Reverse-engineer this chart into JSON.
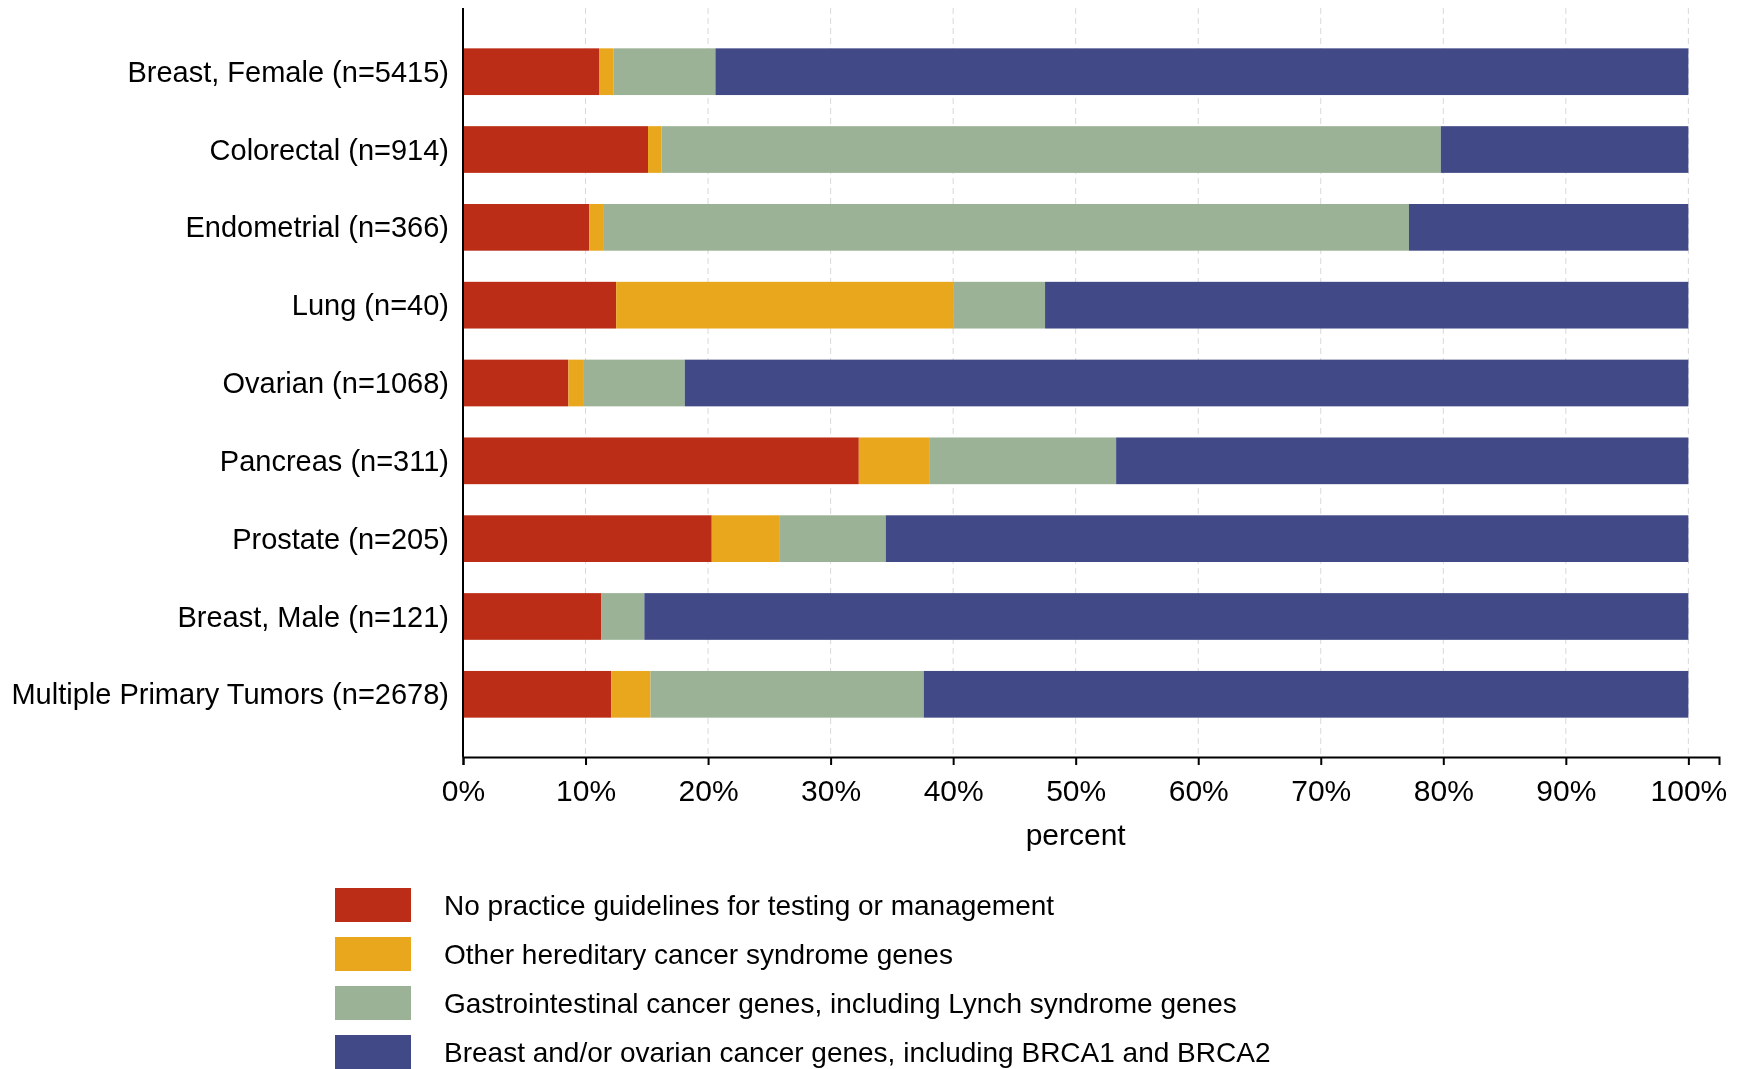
{
  "chart_data": {
    "type": "bar",
    "orientation": "horizontal",
    "stacked": true,
    "xlabel": "percent",
    "grid": "x",
    "legend": "bottom",
    "categories": [
      "Breast, Female (n=5415)",
      "Colorectal (n=914)",
      "Endometrial (n=366)",
      "Lung (n=40)",
      "Ovarian (n=1068)",
      "Pancreas (n=311)",
      "Prostate (n=205)",
      "Breast, Male (n=121)",
      "Multiple Primary Tumors (n=2678)"
    ],
    "xlim": [
      0,
      102.5
    ],
    "xticks": [
      {
        "value": 0,
        "label": "0%"
      },
      {
        "value": 10,
        "label": "10%"
      },
      {
        "value": 20,
        "label": "20%"
      },
      {
        "value": 30,
        "label": "30%"
      },
      {
        "value": 40,
        "label": "40%"
      },
      {
        "value": 50,
        "label": "50%"
      },
      {
        "value": 60,
        "label": "60%"
      },
      {
        "value": 70,
        "label": "70%"
      },
      {
        "value": 80,
        "label": "80%"
      },
      {
        "value": 90,
        "label": "90%"
      },
      {
        "value": 100,
        "label": "100%"
      }
    ],
    "series": [
      {
        "name": "No practice guidelines for testing or management",
        "color": "#bb2d16",
        "values": [
          11.1,
          15.1,
          10.3,
          12.5,
          8.6,
          32.3,
          20.3,
          11.3,
          12.1
        ]
      },
      {
        "name": "Other hereditary cancer syndrome genes",
        "color": "#e8a71c",
        "values": [
          1.2,
          1.1,
          1.2,
          27.5,
          1.2,
          5.8,
          5.5,
          0,
          3.2
        ]
      },
      {
        "name": "Gastrointestinal cancer genes, including Lynch syndrome genes",
        "color": "#9bb296",
        "values": [
          8.3,
          63.6,
          65.7,
          7.5,
          8.3,
          15.2,
          8.7,
          3.5,
          22.3
        ]
      },
      {
        "name": "Breast and/or ovarian cancer genes, including BRCA1 and BRCA2",
        "color": "#414a86",
        "values": [
          79.4,
          20.2,
          22.8,
          52.5,
          81.9,
          46.7,
          65.5,
          85.2,
          62.4
        ]
      }
    ]
  }
}
